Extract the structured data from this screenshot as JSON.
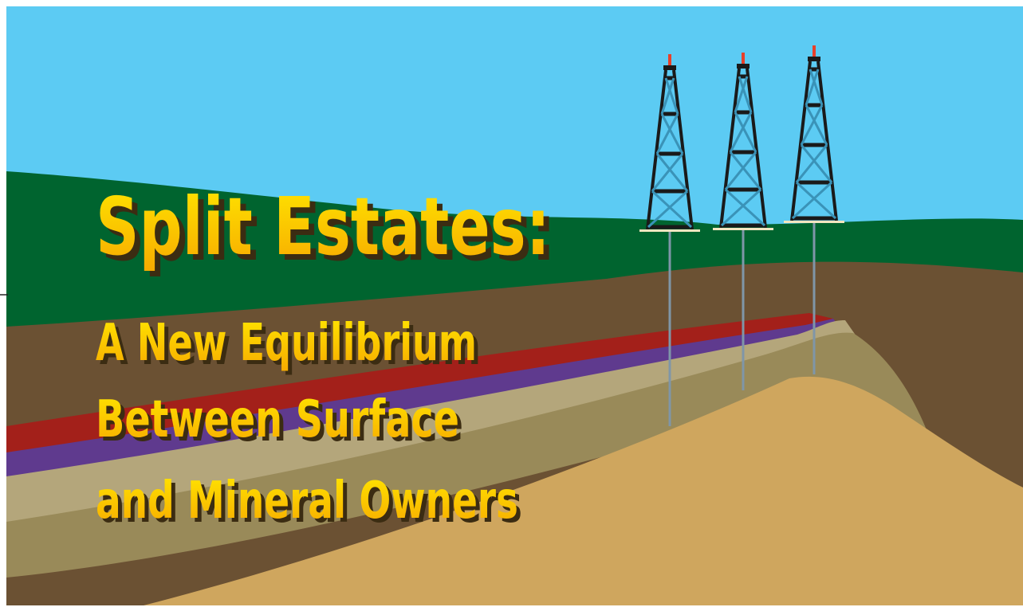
{
  "title": "Split Estates:",
  "subtitle": [
    "A New Equilibrium",
    "Between Surface",
    "and Mineral Owners"
  ]
}
